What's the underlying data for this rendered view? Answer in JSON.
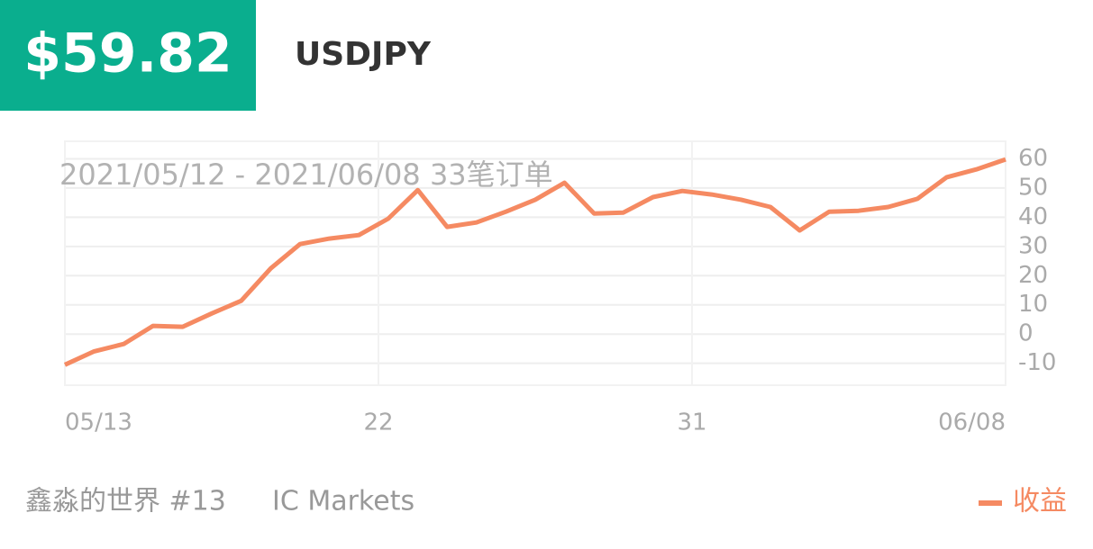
{
  "header": {
    "price": "$59.82",
    "symbol": "USDJPY"
  },
  "chart_data": {
    "type": "line",
    "subtitle": "2021/05/12 - 2021/06/08  33笔订单",
    "x": [
      0,
      0.84,
      1.69,
      2.53,
      3.38,
      4.22,
      5.06,
      5.91,
      6.75,
      7.59,
      8.44,
      9.28,
      10.13,
      10.97,
      11.81,
      12.66,
      13.5,
      14.34,
      15.19,
      16.03,
      16.88,
      17.72,
      18.56,
      19.41,
      20.25,
      21.09,
      21.94,
      22.78,
      23.63,
      24.47,
      25.31,
      26.16,
      27
    ],
    "series": [
      {
        "name": "收益",
        "color": "#f58a62",
        "values": [
          -10.5,
          -5.9,
          -3.4,
          2.8,
          2.5,
          7.1,
          11.4,
          22.5,
          30.8,
          32.7,
          33.9,
          39.5,
          49.3,
          36.7,
          38.2,
          41.9,
          46,
          51.8,
          41.3,
          41.6,
          46.9,
          49,
          47.8,
          46,
          43.5,
          35.5,
          41.9,
          42.2,
          43.5,
          46.3,
          53.7,
          56.4,
          59.82
        ]
      }
    ],
    "xlim": [
      0,
      27
    ],
    "xticks": [
      {
        "value": 0,
        "label": "05/13"
      },
      {
        "value": 9,
        "label": "22"
      },
      {
        "value": 18,
        "label": "31"
      },
      {
        "value": 27,
        "label": "06/08"
      }
    ],
    "ylim": [
      -17.5,
      66
    ],
    "yticks": [
      -10,
      0,
      10,
      20,
      30,
      40,
      50,
      60
    ],
    "grid": true
  },
  "footer": {
    "account": "鑫淼的世界 #13",
    "broker": "IC Markets"
  }
}
